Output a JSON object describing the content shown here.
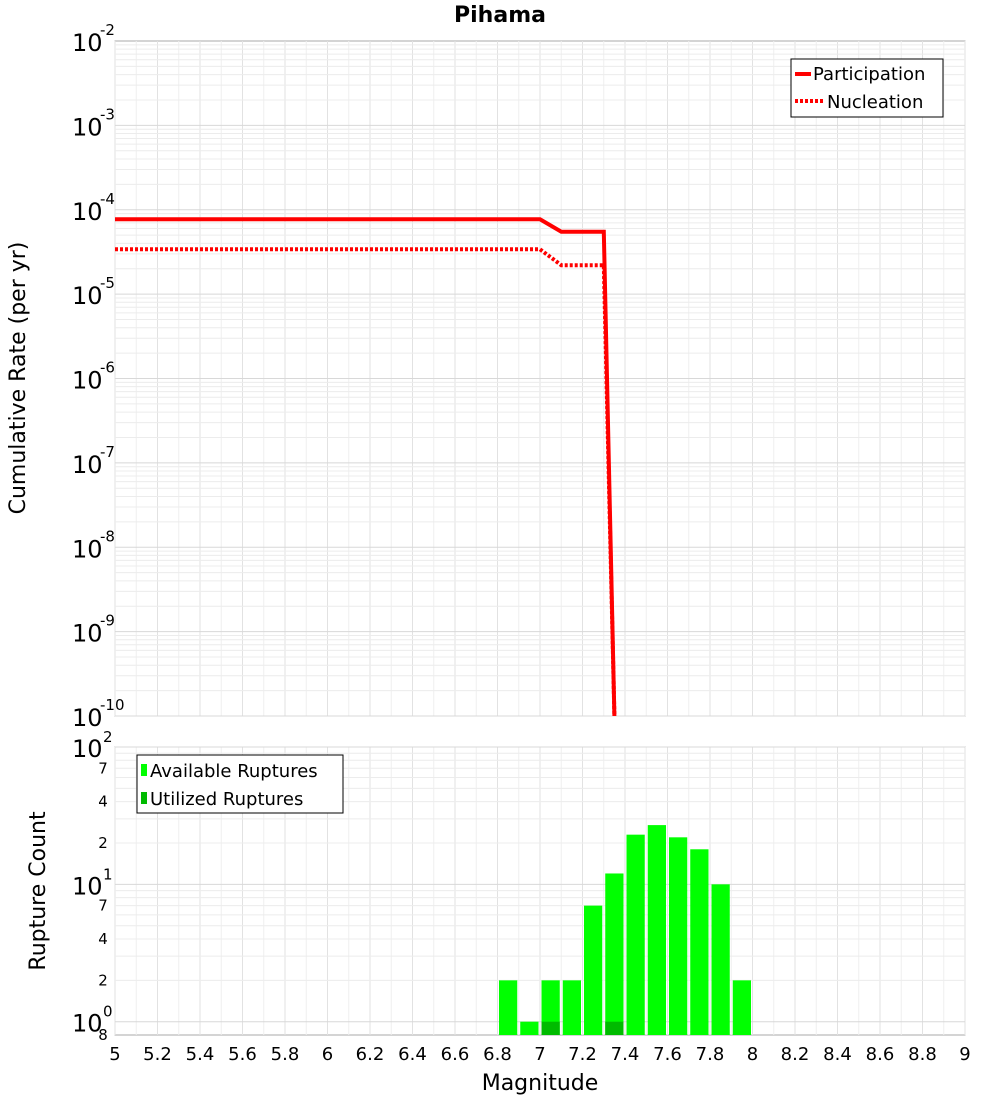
{
  "chart_data": {
    "title": "Pihama",
    "xlabel": "Magnitude",
    "xlim": [
      5,
      9
    ],
    "x_ticks": [
      "5",
      "5.2",
      "5.4",
      "5.6",
      "5.8",
      "6",
      "6.2",
      "6.4",
      "6.6",
      "6.8",
      "7",
      "7.2",
      "7.4",
      "7.6",
      "7.8",
      "8",
      "8.2",
      "8.4",
      "8.6",
      "8.8",
      "9"
    ],
    "top": {
      "type": "line",
      "ylabel": "Cumulative Rate (per yr)",
      "yscale": "log",
      "ylim_exp": [
        -10,
        -2
      ],
      "y_ticks": [
        {
          "base": "10",
          "exp": "-2"
        },
        {
          "base": "10",
          "exp": "-3"
        },
        {
          "base": "10",
          "exp": "-4"
        },
        {
          "base": "10",
          "exp": "-5"
        },
        {
          "base": "10",
          "exp": "-6"
        },
        {
          "base": "10",
          "exp": "-7"
        },
        {
          "base": "10",
          "exp": "-8"
        },
        {
          "base": "10",
          "exp": "-9"
        },
        {
          "base": "10",
          "exp": "-10"
        }
      ],
      "legend": [
        "Participation",
        "Nucleation"
      ],
      "series": [
        {
          "name": "Participation",
          "color": "#ff0000",
          "style": "solid",
          "x": [
            5.0,
            7.0,
            7.1,
            7.3,
            7.35
          ],
          "y": [
            7.7e-05,
            7.7e-05,
            5.5e-05,
            5.5e-05,
            1e-10
          ]
        },
        {
          "name": "Nucleation",
          "color": "#ff0000",
          "style": "dotted",
          "x": [
            5.0,
            7.0,
            7.1,
            7.3,
            7.35
          ],
          "y": [
            3.4e-05,
            3.4e-05,
            2.2e-05,
            2.2e-05,
            1e-10
          ]
        }
      ]
    },
    "bottom": {
      "type": "bar",
      "ylabel": "Rupture Count",
      "yscale": "log",
      "ylim": [
        0.8,
        100
      ],
      "major_ticks": [
        {
          "base": "10",
          "exp": "2"
        },
        {
          "base": "10",
          "exp": "1"
        },
        {
          "base": "10",
          "exp": "0"
        }
      ],
      "minor_ticks": [
        {
          "label": "7",
          "value": 70
        },
        {
          "label": "4",
          "value": 40
        },
        {
          "label": "2",
          "value": 20
        },
        {
          "label": "7",
          "value": 7
        },
        {
          "label": "4",
          "value": 4
        },
        {
          "label": "2",
          "value": 2
        },
        {
          "label": "8",
          "value": 0.8
        }
      ],
      "legend": [
        "Available Ruptures",
        "Utilized Ruptures"
      ],
      "bar_width": 0.1,
      "series": [
        {
          "name": "Available Ruptures",
          "color": "#00ff00",
          "x": [
            6.85,
            6.95,
            7.05,
            7.15,
            7.25,
            7.35,
            7.45,
            7.55,
            7.65,
            7.75,
            7.85,
            7.95
          ],
          "values": [
            2,
            1,
            2,
            2,
            7,
            12,
            23,
            27,
            22,
            18,
            10,
            2
          ]
        },
        {
          "name": "Utilized Ruptures",
          "color": "#00bb00",
          "x": [
            7.05,
            7.35
          ],
          "values": [
            1,
            1
          ]
        }
      ]
    }
  }
}
